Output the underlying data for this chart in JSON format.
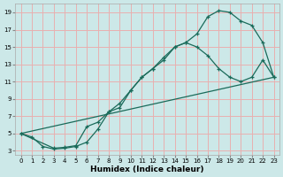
{
  "xlabel": "Humidex (Indice chaleur)",
  "background_color": "#cce8e8",
  "grid_color": "#e8b0b0",
  "line_color": "#1a6b5a",
  "xlim": [
    -0.5,
    23.5
  ],
  "ylim": [
    2.5,
    20
  ],
  "xticks": [
    0,
    1,
    2,
    3,
    4,
    5,
    6,
    7,
    8,
    9,
    10,
    11,
    12,
    13,
    14,
    15,
    16,
    17,
    18,
    19,
    20,
    21,
    22,
    23
  ],
  "yticks": [
    3,
    5,
    7,
    9,
    11,
    13,
    15,
    17,
    19
  ],
  "line1_x": [
    0,
    1,
    2,
    3,
    4,
    5,
    6,
    7,
    8,
    9,
    10,
    11,
    12,
    13,
    14,
    15,
    16,
    17,
    18,
    19,
    20,
    21,
    22,
    23
  ],
  "line1_y": [
    5.0,
    4.6,
    3.5,
    3.2,
    3.3,
    3.5,
    4.0,
    5.5,
    7.5,
    8.0,
    10.0,
    11.5,
    12.5,
    13.5,
    15.0,
    15.5,
    16.5,
    18.5,
    19.2,
    19.0,
    18.0,
    17.5,
    15.5,
    11.5
  ],
  "line2_x": [
    0,
    3,
    4,
    5,
    6,
    7,
    8,
    9,
    10,
    11,
    12,
    13,
    14,
    15,
    16,
    17,
    18,
    19,
    20,
    21,
    22,
    23
  ],
  "line2_y": [
    5.0,
    3.3,
    3.4,
    3.6,
    5.8,
    6.3,
    7.5,
    8.5,
    10.0,
    11.5,
    12.5,
    13.8,
    15.0,
    15.5,
    15.0,
    14.0,
    12.5,
    11.5,
    11.0,
    11.5,
    13.5,
    11.5
  ],
  "line3_x": [
    0,
    23
  ],
  "line3_y": [
    5.0,
    11.5
  ]
}
